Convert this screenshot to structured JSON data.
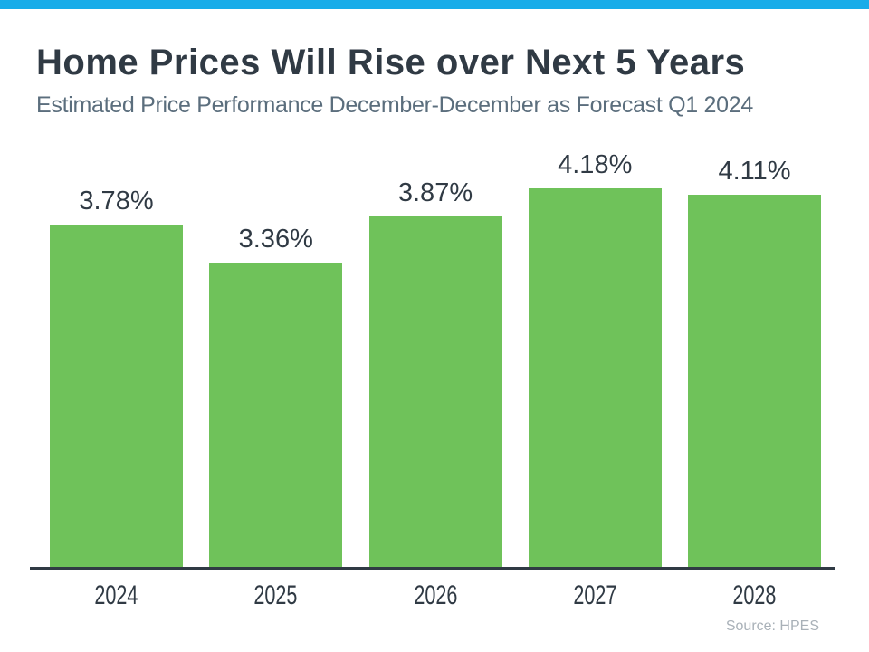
{
  "page": {
    "kind": "infographic-slide"
  },
  "colors": {
    "accent_blue": "#18ace9",
    "bar_green": "#6fc25a",
    "text_dark": "#303a44",
    "subtitle_gray": "#5b6e7d",
    "axis_dark": "#303a44",
    "source_gray": "#a9b1b8",
    "background": "#ffffff"
  },
  "chart_data": {
    "type": "bar",
    "title": "Home Prices Will Rise over Next 5 Years",
    "subtitle": "Estimated Price Performance December-December as Forecast Q1 2024",
    "source": "Source: HPES",
    "categories": [
      "2024",
      "2025",
      "2026",
      "2027",
      "2028"
    ],
    "values": [
      3.78,
      3.36,
      3.87,
      4.18,
      4.11
    ],
    "value_labels": [
      "3.78%",
      "3.36%",
      "3.87%",
      "4.18%",
      "4.11%"
    ],
    "xlabel": "",
    "ylabel": "",
    "ylim": [
      0,
      6.26
    ],
    "grid": false,
    "legend": false,
    "bar_color": "#6fc25a",
    "value_label_position": "above-bar",
    "axis_line": "bottom-only"
  }
}
